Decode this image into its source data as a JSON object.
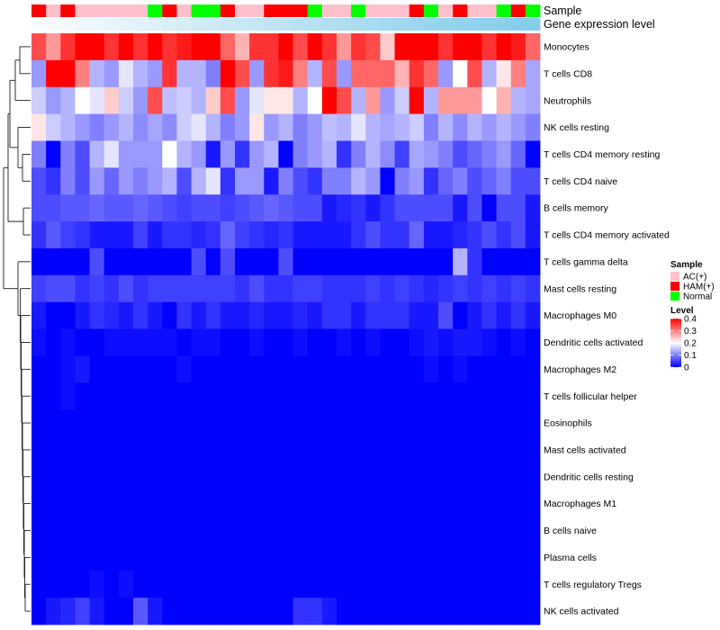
{
  "chart_data": {
    "type": "heatmap",
    "title": "",
    "annotation_labels": [
      "Sample",
      "Gene expression level"
    ],
    "rows": [
      "Monocytes",
      "T cells CD8",
      "Neutrophils",
      "NK cells resting",
      "T cells CD4 memory resting",
      "T cells CD4 naive",
      "B cells memory",
      "T cells CD4 memory activated",
      "T cells gamma delta",
      "Mast cells resting",
      "Macrophages M0",
      "Dendritic cells activated",
      "Macrophages M2",
      "T cells follicular helper",
      "Eosinophils",
      "Mast cells activated",
      "Dendritic cells resting",
      "Macrophages M1",
      "B cells naive",
      "Plasma cells",
      "T cells regulatory  Tregs",
      "NK cells activated"
    ],
    "sample_groups": [
      "HAM(+)",
      "AC(+)",
      "HAM(+)",
      "AC(+)",
      "AC(+)",
      "AC(+)",
      "AC(+)",
      "AC(+)",
      "Normal",
      "HAM(+)",
      "AC(+)",
      "Normal",
      "Normal",
      "HAM(+)",
      "AC(+)",
      "AC(+)",
      "HAM(+)",
      "HAM(+)",
      "HAM(+)",
      "Normal",
      "AC(+)",
      "AC(+)",
      "Normal",
      "AC(+)",
      "AC(+)",
      "AC(+)",
      "HAM(+)",
      "Normal",
      "AC(+)",
      "HAM(+)",
      "AC(+)",
      "AC(+)",
      "Normal",
      "HAM(+)",
      "Normal"
    ],
    "values": [
      [
        0.34,
        0.28,
        0.36,
        0.4,
        0.42,
        0.36,
        0.4,
        0.36,
        0.4,
        0.36,
        0.38,
        0.4,
        0.44,
        0.32,
        0.26,
        0.36,
        0.36,
        0.4,
        0.34,
        0.4,
        0.36,
        0.28,
        0.36,
        0.34,
        0.24,
        0.4,
        0.4,
        0.4,
        0.36,
        0.4,
        0.44,
        0.36,
        0.4,
        0.38,
        0.32
      ],
      [
        0.12,
        0.42,
        0.42,
        0.3,
        0.14,
        0.12,
        0.18,
        0.14,
        0.12,
        0.36,
        0.14,
        0.14,
        0.1,
        0.42,
        0.34,
        0.12,
        0.36,
        0.38,
        0.3,
        0.14,
        0.34,
        0.12,
        0.32,
        0.32,
        0.32,
        0.26,
        0.36,
        0.32,
        0.12,
        0.2,
        0.34,
        0.14,
        0.22,
        0.3,
        0.13
      ],
      [
        0.16,
        0.12,
        0.14,
        0.2,
        0.18,
        0.24,
        0.16,
        0.12,
        0.34,
        0.15,
        0.16,
        0.14,
        0.24,
        0.34,
        0.12,
        0.18,
        0.22,
        0.22,
        0.14,
        0.2,
        0.4,
        0.34,
        0.14,
        0.28,
        0.12,
        0.16,
        0.44,
        0.14,
        0.28,
        0.28,
        0.28,
        0.2,
        0.26,
        0.14,
        0.13
      ],
      [
        0.22,
        0.16,
        0.14,
        0.12,
        0.1,
        0.12,
        0.14,
        0.11,
        0.13,
        0.11,
        0.16,
        0.18,
        0.14,
        0.1,
        0.12,
        0.22,
        0.12,
        0.14,
        0.1,
        0.12,
        0.15,
        0.14,
        0.18,
        0.14,
        0.13,
        0.14,
        0.16,
        0.1,
        0.14,
        0.11,
        0.14,
        0.12,
        0.14,
        0.12,
        0.1
      ],
      [
        0.1,
        0.0,
        0.1,
        0.06,
        0.14,
        0.18,
        0.12,
        0.12,
        0.12,
        0.2,
        0.14,
        0.12,
        0.02,
        0.12,
        0.04,
        0.12,
        0.14,
        0.0,
        0.1,
        0.12,
        0.14,
        0.04,
        0.1,
        0.14,
        0.11,
        0.05,
        0.13,
        0.12,
        0.1,
        0.06,
        0.08,
        0.1,
        0.12,
        0.08,
        0.0
      ],
      [
        0.06,
        0.04,
        0.1,
        0.06,
        0.12,
        0.08,
        0.12,
        0.1,
        0.12,
        0.14,
        0.06,
        0.14,
        0.18,
        0.04,
        0.12,
        0.12,
        0.02,
        0.1,
        0.06,
        0.04,
        0.1,
        0.1,
        0.14,
        0.12,
        0.0,
        0.1,
        0.12,
        0.04,
        0.08,
        0.1,
        0.06,
        0.08,
        0.1,
        0.06,
        0.06
      ],
      [
        0.06,
        0.06,
        0.07,
        0.07,
        0.08,
        0.07,
        0.07,
        0.08,
        0.07,
        0.06,
        0.05,
        0.06,
        0.06,
        0.05,
        0.06,
        0.07,
        0.08,
        0.07,
        0.06,
        0.06,
        0.02,
        0.03,
        0.04,
        0.02,
        0.04,
        0.06,
        0.06,
        0.06,
        0.06,
        0.02,
        0.06,
        0.0,
        0.06,
        0.06,
        0.02
      ],
      [
        0.04,
        0.07,
        0.05,
        0.04,
        0.02,
        0.02,
        0.02,
        0.05,
        0.02,
        0.04,
        0.04,
        0.03,
        0.04,
        0.08,
        0.05,
        0.04,
        0.03,
        0.04,
        0.02,
        0.02,
        0.02,
        0.02,
        0.04,
        0.06,
        0.04,
        0.04,
        0.08,
        0.02,
        0.02,
        0.03,
        0.04,
        0.06,
        0.04,
        0.06,
        0.02
      ],
      [
        0.0,
        0.0,
        0.0,
        0.0,
        0.06,
        0.0,
        0.0,
        0.0,
        0.0,
        0.0,
        0.0,
        0.06,
        0.0,
        0.06,
        0.0,
        0.0,
        0.0,
        0.06,
        0.0,
        0.0,
        0.0,
        0.0,
        0.0,
        0.0,
        0.0,
        0.0,
        0.0,
        0.0,
        0.0,
        0.14,
        0.04,
        0.0,
        0.0,
        0.0,
        0.0
      ],
      [
        0.05,
        0.06,
        0.06,
        0.04,
        0.05,
        0.04,
        0.06,
        0.04,
        0.05,
        0.05,
        0.05,
        0.05,
        0.05,
        0.05,
        0.04,
        0.06,
        0.04,
        0.04,
        0.05,
        0.05,
        0.04,
        0.04,
        0.04,
        0.05,
        0.04,
        0.05,
        0.04,
        0.03,
        0.04,
        0.05,
        0.04,
        0.05,
        0.04,
        0.05,
        0.04
      ],
      [
        0.02,
        0.0,
        0.0,
        0.02,
        0.04,
        0.03,
        0.02,
        0.04,
        0.02,
        0.0,
        0.04,
        0.02,
        0.04,
        0.02,
        0.02,
        0.03,
        0.02,
        0.02,
        0.03,
        0.02,
        0.04,
        0.04,
        0.02,
        0.04,
        0.04,
        0.04,
        0.02,
        0.02,
        0.06,
        0.0,
        0.02,
        0.04,
        0.02,
        0.04,
        0.02
      ],
      [
        0.01,
        0.0,
        0.01,
        0.0,
        0.0,
        0.01,
        0.01,
        0.01,
        0.01,
        0.01,
        0.0,
        0.01,
        0.01,
        0.0,
        0.0,
        0.01,
        0.0,
        0.0,
        0.01,
        0.0,
        0.0,
        0.01,
        0.0,
        0.01,
        0.0,
        0.0,
        0.01,
        0.02,
        0.01,
        0.02,
        0.02,
        0.01,
        0.0,
        0.01,
        0.0
      ],
      [
        0.0,
        0.0,
        0.01,
        0.02,
        0.0,
        0.0,
        0.0,
        0.0,
        0.0,
        0.0,
        0.01,
        0.0,
        0.0,
        0.0,
        0.0,
        0.0,
        0.0,
        0.0,
        0.0,
        0.0,
        0.0,
        0.0,
        0.0,
        0.0,
        0.0,
        0.0,
        0.0,
        0.01,
        0.0,
        0.01,
        0.0,
        0.0,
        0.0,
        0.0,
        0.0
      ],
      [
        0.0,
        0.0,
        0.01,
        0.0,
        0.0,
        0.0,
        0.0,
        0.0,
        0.0,
        0.0,
        0.0,
        0.0,
        0.0,
        0.0,
        0.0,
        0.0,
        0.0,
        0.0,
        0.0,
        0.0,
        0.0,
        0.0,
        0.0,
        0.0,
        0.0,
        0.0,
        0.0,
        0.0,
        0.0,
        0.0,
        0.0,
        0.0,
        0.0,
        0.0,
        0.0
      ],
      [
        0.0,
        0.0,
        0.0,
        0.0,
        0.0,
        0.0,
        0.0,
        0.0,
        0.0,
        0.0,
        0.0,
        0.0,
        0.0,
        0.0,
        0.0,
        0.0,
        0.0,
        0.0,
        0.0,
        0.0,
        0.0,
        0.0,
        0.0,
        0.0,
        0.0,
        0.0,
        0.0,
        0.0,
        0.0,
        0.0,
        0.0,
        0.0,
        0.0,
        0.0,
        0.0
      ],
      [
        0.0,
        0.0,
        0.0,
        0.0,
        0.0,
        0.0,
        0.0,
        0.0,
        0.0,
        0.0,
        0.0,
        0.0,
        0.0,
        0.0,
        0.0,
        0.0,
        0.0,
        0.0,
        0.0,
        0.0,
        0.0,
        0.0,
        0.0,
        0.0,
        0.0,
        0.0,
        0.0,
        0.0,
        0.0,
        0.0,
        0.0,
        0.0,
        0.0,
        0.0,
        0.0
      ],
      [
        0.0,
        0.0,
        0.0,
        0.0,
        0.0,
        0.0,
        0.0,
        0.0,
        0.0,
        0.0,
        0.0,
        0.0,
        0.0,
        0.0,
        0.0,
        0.0,
        0.0,
        0.0,
        0.0,
        0.0,
        0.0,
        0.0,
        0.0,
        0.0,
        0.0,
        0.0,
        0.0,
        0.0,
        0.0,
        0.0,
        0.0,
        0.0,
        0.0,
        0.0,
        0.0
      ],
      [
        0.0,
        0.0,
        0.0,
        0.0,
        0.0,
        0.0,
        0.0,
        0.0,
        0.0,
        0.0,
        0.0,
        0.0,
        0.0,
        0.0,
        0.0,
        0.0,
        0.0,
        0.0,
        0.0,
        0.0,
        0.0,
        0.0,
        0.0,
        0.0,
        0.0,
        0.0,
        0.0,
        0.0,
        0.0,
        0.0,
        0.0,
        0.0,
        0.0,
        0.0,
        0.0
      ],
      [
        0.0,
        0.0,
        0.0,
        0.0,
        0.0,
        0.0,
        0.0,
        0.0,
        0.0,
        0.0,
        0.0,
        0.0,
        0.0,
        0.0,
        0.0,
        0.0,
        0.0,
        0.0,
        0.0,
        0.0,
        0.0,
        0.0,
        0.0,
        0.0,
        0.0,
        0.0,
        0.0,
        0.0,
        0.0,
        0.0,
        0.0,
        0.0,
        0.0,
        0.0,
        0.0
      ],
      [
        0.0,
        0.0,
        0.0,
        0.0,
        0.0,
        0.0,
        0.0,
        0.0,
        0.0,
        0.0,
        0.0,
        0.0,
        0.0,
        0.0,
        0.0,
        0.0,
        0.0,
        0.0,
        0.0,
        0.0,
        0.0,
        0.0,
        0.0,
        0.0,
        0.0,
        0.0,
        0.0,
        0.0,
        0.0,
        0.0,
        0.0,
        0.0,
        0.0,
        0.0,
        0.0
      ],
      [
        0.0,
        0.0,
        0.0,
        0.0,
        0.01,
        0.0,
        0.01,
        0.0,
        0.0,
        0.0,
        0.0,
        0.0,
        0.0,
        0.0,
        0.0,
        0.0,
        0.0,
        0.0,
        0.0,
        0.0,
        0.0,
        0.0,
        0.0,
        0.0,
        0.0,
        0.0,
        0.0,
        0.0,
        0.0,
        0.0,
        0.0,
        0.0,
        0.0,
        0.0,
        0.0
      ],
      [
        0.0,
        0.02,
        0.03,
        0.05,
        0.02,
        0.0,
        0.0,
        0.07,
        0.02,
        0.0,
        0.0,
        0.0,
        0.0,
        0.0,
        0.0,
        0.0,
        0.0,
        0.0,
        0.04,
        0.04,
        0.02,
        0.0,
        0.0,
        0.0,
        0.0,
        0.0,
        0.0,
        0.0,
        0.0,
        0.0,
        0.0,
        0.0,
        0.0,
        0.0,
        0.0
      ]
    ],
    "expression_bar": [
      0.05,
      0.08,
      0.11,
      0.14,
      0.17,
      0.2,
      0.23,
      0.26,
      0.29,
      0.32,
      0.35,
      0.38,
      0.41,
      0.44,
      0.47,
      0.5,
      0.53,
      0.56,
      0.59,
      0.62,
      0.65,
      0.68,
      0.71,
      0.74,
      0.77,
      0.8,
      0.83,
      0.86,
      0.88,
      0.9,
      0.92,
      0.94,
      0.96,
      0.98,
      1.0
    ],
    "color_scale": {
      "min": 0,
      "max": 0.4,
      "low": "#0000FF",
      "mid": "#FFFFFF",
      "high": "#FF0000",
      "midpoint": 0.2
    },
    "legend": {
      "sample_title": "Sample",
      "sample_items": [
        {
          "label": "AC(+)",
          "color": "#FFC0CB"
        },
        {
          "label": "HAM(+)",
          "color": "#FF0000"
        },
        {
          "label": "Normal",
          "color": "#00FF00"
        }
      ],
      "level_title": "Level",
      "level_ticks": [
        {
          "label": "0.4",
          "value": 0.4
        },
        {
          "label": "0.3",
          "value": 0.3
        },
        {
          "label": "0.2",
          "value": 0.2
        },
        {
          "label": "0.1",
          "value": 0.1
        },
        {
          "label": "0",
          "value": 0
        }
      ]
    },
    "expression_bar_colors": {
      "low": "#FFFFFF",
      "high": "#87CEEB"
    }
  }
}
